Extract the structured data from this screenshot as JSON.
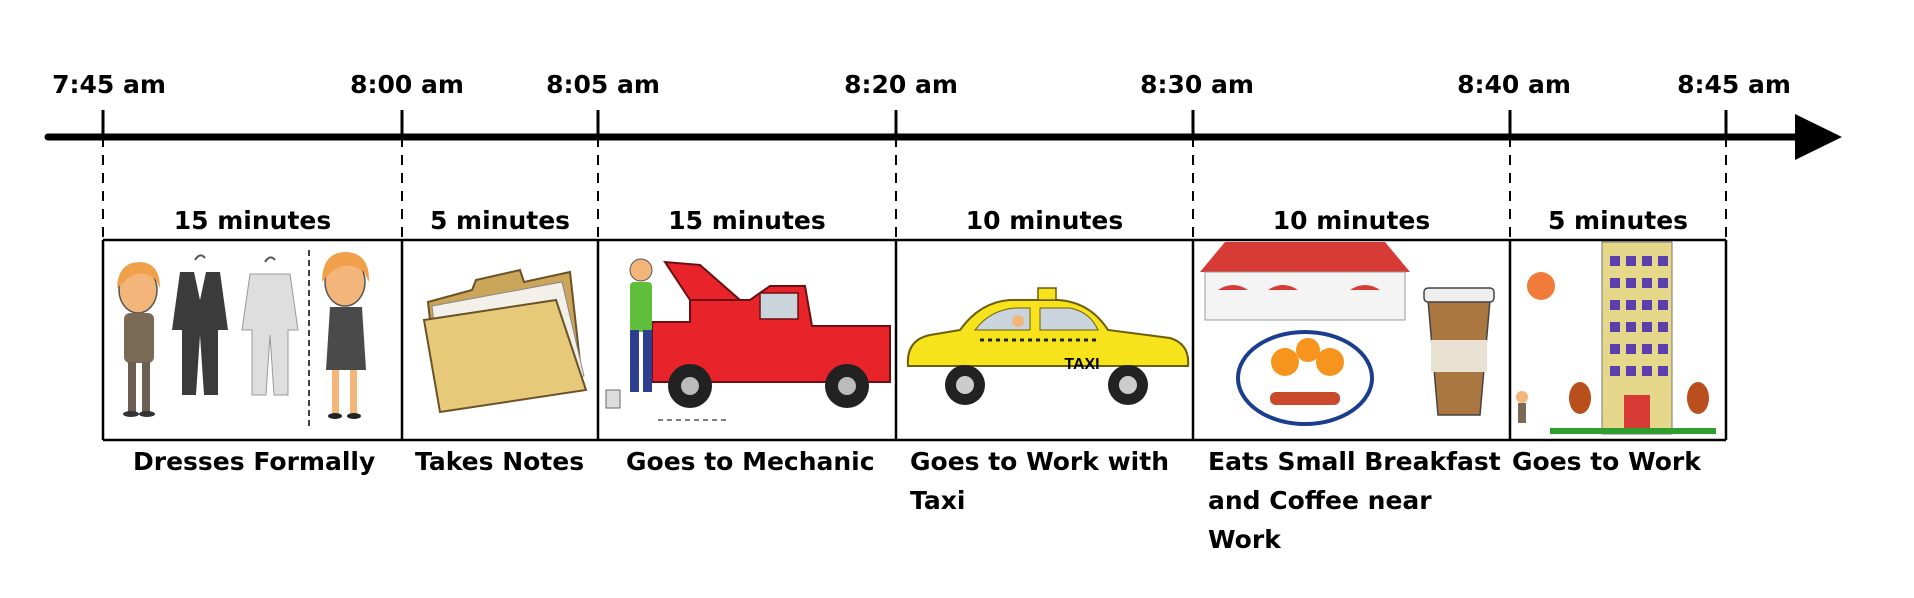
{
  "times": [
    "7:45 am",
    "8:00 am",
    "8:05 am",
    "8:20 am",
    "8:30 am",
    "8:40 am",
    "8:45 am"
  ],
  "segments": [
    {
      "duration": "15 minutes",
      "activity": "Dresses Formally",
      "picture": "woman-and-suits"
    },
    {
      "duration": "5 minutes",
      "activity": "Takes Notes",
      "picture": "folder-icon"
    },
    {
      "duration": "15 minutes",
      "activity": "Goes to Mechanic",
      "picture": "red-truck-and-mechanic"
    },
    {
      "duration": "10 minutes",
      "activity": "Goes to Work with\nTaxi",
      "picture": "taxi-icon"
    },
    {
      "duration": "10 minutes",
      "activity": "Eats Small Breakfast\nand Coffee near\nWork",
      "picture": "cafe-breakfast-coffee"
    },
    {
      "duration": "5 minutes",
      "activity": "Goes to Work",
      "picture": "office-building"
    }
  ],
  "taxi_sign": "TAXI",
  "colors": {
    "line": "#000000",
    "taxi": "#f7e31c",
    "truck": "#e8232a",
    "folder": "#e7c97a",
    "building": "#e6d88b",
    "window": "#5b3fae",
    "awning": "#d83a35",
    "sun": "#f07b3a",
    "egg_yolk": "#f7941d",
    "bacon": "#c84a2b",
    "coffee": "#a9773f",
    "tree": "#b84f1c",
    "grass": "#2e9e2e",
    "skin": "#f3b57a",
    "hair": "#f0a04b",
    "suit_dark": "#3b3b3b",
    "suit_light": "#dedede"
  }
}
